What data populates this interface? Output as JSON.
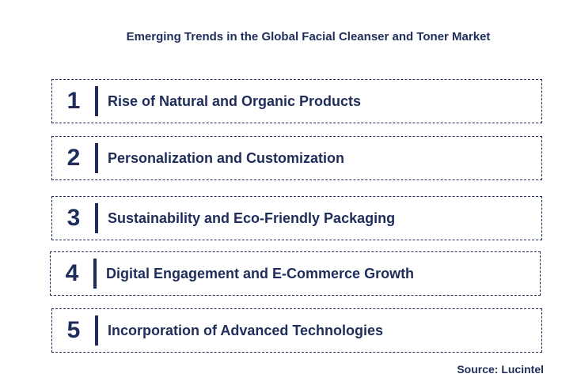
{
  "title": "Emerging Trends in the Global Facial Cleanser and Toner Market",
  "trends": [
    {
      "number": "1",
      "label": "Rise of Natural and Organic Products"
    },
    {
      "number": "2",
      "label": "Personalization and Customization"
    },
    {
      "number": "3",
      "label": "Sustainability and Eco-Friendly Packaging"
    },
    {
      "number": "4",
      "label": "Digital Engagement and E-Commerce Growth"
    },
    {
      "number": "5",
      "label": "Incorporation of Advanced Technologies"
    }
  ],
  "source": "Source: Lucintel",
  "colors": {
    "text": "#1f2d5a",
    "border": "#1f2d5a",
    "background": "#ffffff"
  }
}
